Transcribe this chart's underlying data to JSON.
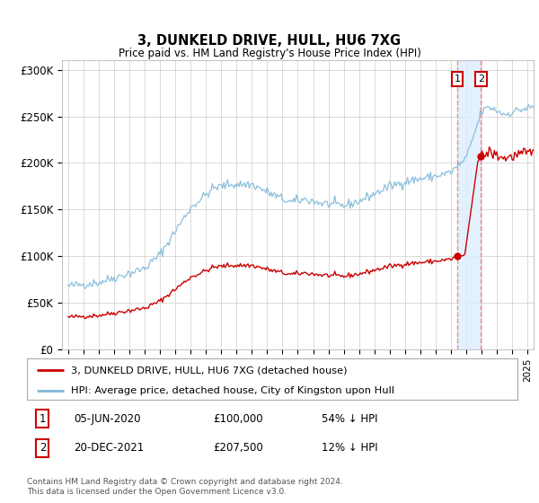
{
  "title": "3, DUNKELD DRIVE, HULL, HU6 7XG",
  "subtitle": "Price paid vs. HM Land Registry's House Price Index (HPI)",
  "legend_line1": "3, DUNKELD DRIVE, HULL, HU6 7XG (detached house)",
  "legend_line2": "HPI: Average price, detached house, City of Kingston upon Hull",
  "transaction1_year": 2020.42,
  "transaction1_price": 100000,
  "transaction2_year": 2021.96,
  "transaction2_price": 207500,
  "footer": "Contains HM Land Registry data © Crown copyright and database right 2024.\nThis data is licensed under the Open Government Licence v3.0.",
  "hpi_color": "#7fb9d9",
  "price_color": "#cc0000",
  "marker_color": "#cc0000",
  "vline_color": "#f48080",
  "shade_color": "#ddeeff",
  "background_color": "#ffffff",
  "grid_color": "#cccccc",
  "ylim": [
    0,
    310000
  ],
  "yticks": [
    0,
    50000,
    100000,
    150000,
    200000,
    250000,
    300000
  ],
  "ytick_labels": [
    "£0",
    "£50K",
    "£100K",
    "£150K",
    "£200K",
    "£250K",
    "£300K"
  ],
  "xlim_left": 1994.6,
  "xlim_right": 2025.4
}
